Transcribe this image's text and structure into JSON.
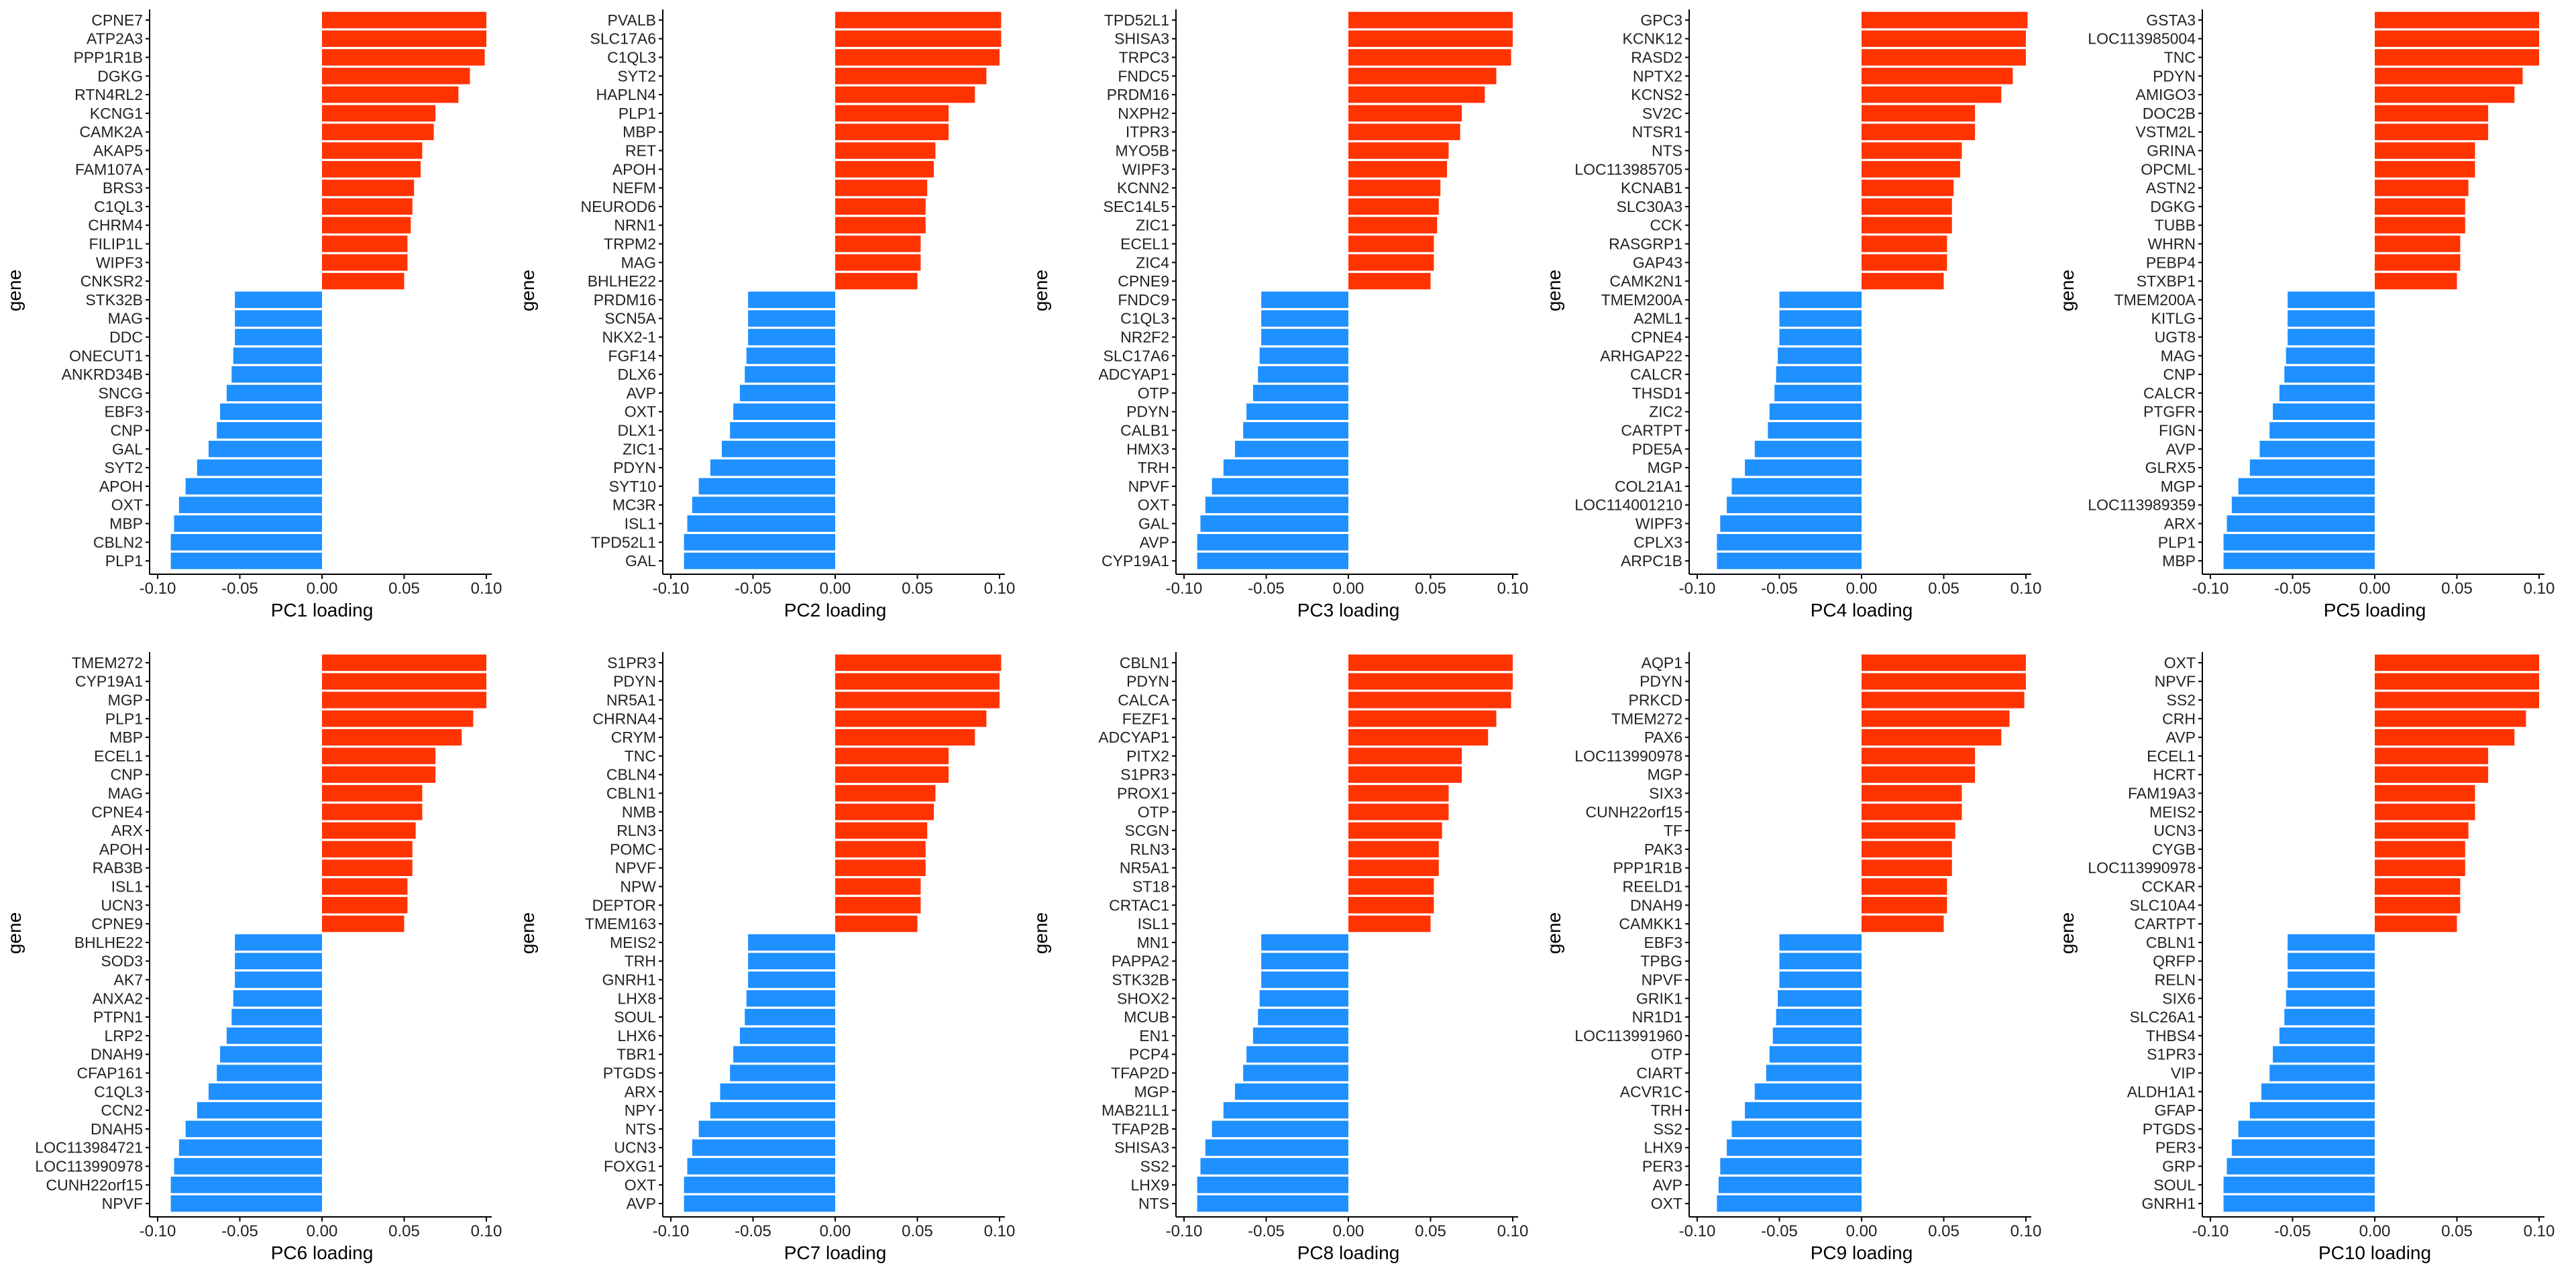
{
  "colors": {
    "positive": "#FF3300",
    "negative": "#1E90FF",
    "axis": "#000000",
    "background": "#FFFFFF"
  },
  "chart_data": [
    {
      "type": "bar",
      "orientation": "horizontal",
      "ylabel": "gene",
      "xlabel": "PC1 loading",
      "xlim": [
        -0.1,
        0.1
      ],
      "xticks": [
        -0.1,
        -0.05,
        0,
        0.05,
        0.1
      ],
      "xtick_labels": [
        "-0.10",
        "-0.05",
        "0.00",
        "0.05",
        "0.10"
      ],
      "categories": [
        "CPNE7",
        "ATP2A3",
        "PPP1R1B",
        "DGKG",
        "RTN4RL2",
        "KCNG1",
        "CAMK2A",
        "AKAP5",
        "FAM107A",
        "BRS3",
        "C1QL3",
        "CHRM4",
        "FILIP1L",
        "WIPF3",
        "CNKSR2",
        "STK32B",
        "MAG",
        "DDC",
        "ONECUT1",
        "ANKRD34B",
        "SNCG",
        "EBF3",
        "CNP",
        "GAL",
        "SYT2",
        "APOH",
        "OXT",
        "MBP",
        "CBLN2",
        "PLP1"
      ],
      "values": [
        0.1,
        0.1,
        0.099,
        0.09,
        0.083,
        0.069,
        0.068,
        0.061,
        0.06,
        0.056,
        0.055,
        0.054,
        0.052,
        0.052,
        0.05,
        -0.053,
        -0.053,
        -0.053,
        -0.054,
        -0.055,
        -0.058,
        -0.062,
        -0.064,
        -0.069,
        -0.076,
        -0.083,
        -0.087,
        -0.09,
        -0.092,
        -0.092
      ]
    },
    {
      "type": "bar",
      "orientation": "horizontal",
      "ylabel": "gene",
      "xlabel": "PC2 loading",
      "xlim": [
        -0.1,
        0.1
      ],
      "xticks": [
        -0.1,
        -0.05,
        0,
        0.05,
        0.1
      ],
      "xtick_labels": [
        "-0.10",
        "-0.05",
        "0.00",
        "0.05",
        "0.10"
      ],
      "categories": [
        "PVALB",
        "SLC17A6",
        "C1QL3",
        "SYT2",
        "HAPLN4",
        "PLP1",
        "MBP",
        "RET",
        "APOH",
        "NEFM",
        "NEUROD6",
        "NRN1",
        "TRPM2",
        "MAG",
        "BHLHE22",
        "PRDM16",
        "SCN5A",
        "NKX2-1",
        "FGF14",
        "DLX6",
        "AVP",
        "OXT",
        "DLX1",
        "ZIC1",
        "PDYN",
        "SYT10",
        "MC3R",
        "ISL1",
        "TPD52L1",
        "GAL"
      ],
      "values": [
        0.101,
        0.101,
        0.1,
        0.092,
        0.085,
        0.069,
        0.069,
        0.061,
        0.06,
        0.056,
        0.055,
        0.055,
        0.052,
        0.052,
        0.05,
        -0.053,
        -0.053,
        -0.053,
        -0.054,
        -0.055,
        -0.058,
        -0.062,
        -0.064,
        -0.069,
        -0.076,
        -0.083,
        -0.087,
        -0.09,
        -0.092,
        -0.092
      ]
    },
    {
      "type": "bar",
      "orientation": "horizontal",
      "ylabel": "gene",
      "xlabel": "PC3 loading",
      "xlim": [
        -0.1,
        0.1
      ],
      "xticks": [
        -0.1,
        -0.05,
        0,
        0.05,
        0.1
      ],
      "xtick_labels": [
        "-0.10",
        "-0.05",
        "0.00",
        "0.05",
        "0.10"
      ],
      "categories": [
        "TPD52L1",
        "SHISA3",
        "TRPC3",
        "FNDC5",
        "PRDM16",
        "NXPH2",
        "ITPR3",
        "MYO5B",
        "WIPF3",
        "KCNN2",
        "SEC14L5",
        "ZIC1",
        "ECEL1",
        "ZIC4",
        "CPNE9",
        "FNDC9",
        "C1QL3",
        "NR2F2",
        "SLC17A6",
        "ADCYAP1",
        "OTP",
        "PDYN",
        "CALB1",
        "HMX3",
        "TRH",
        "NPVF",
        "OXT",
        "GAL",
        "AVP",
        "CYP19A1"
      ],
      "values": [
        0.1,
        0.1,
        0.099,
        0.09,
        0.083,
        0.069,
        0.068,
        0.061,
        0.06,
        0.056,
        0.055,
        0.054,
        0.052,
        0.052,
        0.05,
        -0.053,
        -0.053,
        -0.053,
        -0.054,
        -0.055,
        -0.058,
        -0.062,
        -0.064,
        -0.069,
        -0.076,
        -0.083,
        -0.087,
        -0.09,
        -0.092,
        -0.092
      ]
    },
    {
      "type": "bar",
      "orientation": "horizontal",
      "ylabel": "gene",
      "xlabel": "PC4 loading",
      "xlim": [
        -0.1,
        0.1
      ],
      "xticks": [
        -0.1,
        -0.05,
        0,
        0.05,
        0.1
      ],
      "xtick_labels": [
        "-0.10",
        "-0.05",
        "0.00",
        "0.05",
        "0.10"
      ],
      "categories": [
        "GPC3",
        "KCNK12",
        "RASD2",
        "NPTX2",
        "KCNS2",
        "SV2C",
        "NTSR1",
        "NTS",
        "LOC113985705",
        "KCNAB1",
        "SLC30A3",
        "CCK",
        "RASGRP1",
        "GAP43",
        "CAMK2N1",
        "TMEM200A",
        "A2ML1",
        "CPNE4",
        "ARHGAP22",
        "CALCR",
        "THSD1",
        "ZIC2",
        "CARTPT",
        "PDE5A",
        "MGP",
        "COL21A1",
        "LOC114001210",
        "WIPF3",
        "CPLX3",
        "ARPC1B"
      ],
      "values": [
        0.101,
        0.1,
        0.1,
        0.092,
        0.085,
        0.069,
        0.069,
        0.061,
        0.06,
        0.056,
        0.055,
        0.055,
        0.052,
        0.052,
        0.05,
        -0.05,
        -0.05,
        -0.05,
        -0.051,
        -0.052,
        -0.053,
        -0.056,
        -0.057,
        -0.065,
        -0.071,
        -0.079,
        -0.082,
        -0.086,
        -0.088,
        -0.088
      ]
    },
    {
      "type": "bar",
      "orientation": "horizontal",
      "ylabel": "gene",
      "xlabel": "PC5 loading",
      "xlim": [
        -0.1,
        0.1
      ],
      "xticks": [
        -0.1,
        -0.05,
        0,
        0.05,
        0.1
      ],
      "xtick_labels": [
        "-0.10",
        "-0.05",
        "0.00",
        "0.05",
        "0.10"
      ],
      "categories": [
        "GSTA3",
        "LOC113985004",
        "TNC",
        "PDYN",
        "AMIGO3",
        "DOC2B",
        "VSTM2L",
        "GRINA",
        "OPCML",
        "ASTN2",
        "DGKG",
        "TUBB",
        "WHRN",
        "PEBP4",
        "STXBP1",
        "TMEM200A",
        "KITLG",
        "UGT8",
        "MAG",
        "CNP",
        "CALCR",
        "PTGFR",
        "FIGN",
        "AVP",
        "GLRX5",
        "MGP",
        "LOC113989359",
        "ARX",
        "PLP1",
        "MBP"
      ],
      "values": [
        0.1,
        0.1,
        0.1,
        0.09,
        0.085,
        0.069,
        0.069,
        0.061,
        0.061,
        0.057,
        0.055,
        0.055,
        0.052,
        0.052,
        0.05,
        -0.053,
        -0.053,
        -0.053,
        -0.054,
        -0.055,
        -0.058,
        -0.062,
        -0.064,
        -0.07,
        -0.076,
        -0.083,
        -0.087,
        -0.09,
        -0.092,
        -0.092
      ]
    },
    {
      "type": "bar",
      "orientation": "horizontal",
      "ylabel": "gene",
      "xlabel": "PC6 loading",
      "xlim": [
        -0.1,
        0.1
      ],
      "xticks": [
        -0.1,
        -0.05,
        0,
        0.05,
        0.1
      ],
      "xtick_labels": [
        "-0.10",
        "-0.05",
        "0.00",
        "0.05",
        "0.10"
      ],
      "categories": [
        "TMEM272",
        "CYP19A1",
        "MGP",
        "PLP1",
        "MBP",
        "ECEL1",
        "CNP",
        "MAG",
        "CPNE4",
        "ARX",
        "APOH",
        "RAB3B",
        "ISL1",
        "UCN3",
        "CPNE9",
        "BHLHE22",
        "SOD3",
        "AK7",
        "ANXA2",
        "PTPN1",
        "LRP2",
        "DNAH9",
        "CFAP161",
        "C1QL3",
        "CCN2",
        "DNAH5",
        "LOC113984721",
        "LOC113990978",
        "CUNH22orf15",
        "NPVF"
      ],
      "values": [
        0.1,
        0.1,
        0.1,
        0.092,
        0.085,
        0.069,
        0.069,
        0.061,
        0.061,
        0.057,
        0.055,
        0.055,
        0.052,
        0.052,
        0.05,
        -0.053,
        -0.053,
        -0.053,
        -0.054,
        -0.055,
        -0.058,
        -0.062,
        -0.064,
        -0.069,
        -0.076,
        -0.083,
        -0.087,
        -0.09,
        -0.092,
        -0.092
      ]
    },
    {
      "type": "bar",
      "orientation": "horizontal",
      "ylabel": "gene",
      "xlabel": "PC7 loading",
      "xlim": [
        -0.1,
        0.1
      ],
      "xticks": [
        -0.1,
        -0.05,
        0,
        0.05,
        0.1
      ],
      "xtick_labels": [
        "-0.10",
        "-0.05",
        "0.00",
        "0.05",
        "0.10"
      ],
      "categories": [
        "S1PR3",
        "PDYN",
        "NR5A1",
        "CHRNA4",
        "CRYM",
        "TNC",
        "CBLN4",
        "CBLN1",
        "NMB",
        "RLN3",
        "POMC",
        "NPVF",
        "NPW",
        "DEPTOR",
        "TMEM163",
        "MEIS2",
        "TRH",
        "GNRH1",
        "LHX8",
        "SOUL",
        "LHX6",
        "TBR1",
        "PTGDS",
        "ARX",
        "NPY",
        "NTS",
        "UCN3",
        "FOXG1",
        "OXT",
        "AVP"
      ],
      "values": [
        0.101,
        0.1,
        0.1,
        0.092,
        0.085,
        0.069,
        0.069,
        0.061,
        0.06,
        0.056,
        0.055,
        0.055,
        0.052,
        0.052,
        0.05,
        -0.053,
        -0.053,
        -0.053,
        -0.054,
        -0.055,
        -0.058,
        -0.062,
        -0.064,
        -0.07,
        -0.076,
        -0.083,
        -0.087,
        -0.09,
        -0.092,
        -0.092
      ]
    },
    {
      "type": "bar",
      "orientation": "horizontal",
      "ylabel": "gene",
      "xlabel": "PC8 loading",
      "xlim": [
        -0.1,
        0.1
      ],
      "xticks": [
        -0.1,
        -0.05,
        0,
        0.05,
        0.1
      ],
      "xtick_labels": [
        "-0.10",
        "-0.05",
        "0.00",
        "0.05",
        "0.10"
      ],
      "categories": [
        "CBLN1",
        "PDYN",
        "CALCA",
        "FEZF1",
        "ADCYAP1",
        "PITX2",
        "S1PR3",
        "PROX1",
        "OTP",
        "SCGN",
        "RLN3",
        "NR5A1",
        "ST18",
        "CRTAC1",
        "ISL1",
        "MN1",
        "PAPPA2",
        "STK32B",
        "SHOX2",
        "MCUB",
        "EN1",
        "PCP4",
        "TFAP2D",
        "MGP",
        "MAB21L1",
        "TFAP2B",
        "SHISA3",
        "SS2",
        "LHX9",
        "NTS"
      ],
      "values": [
        0.1,
        0.1,
        0.099,
        0.09,
        0.085,
        0.069,
        0.069,
        0.061,
        0.061,
        0.057,
        0.055,
        0.055,
        0.052,
        0.052,
        0.05,
        -0.053,
        -0.053,
        -0.053,
        -0.054,
        -0.055,
        -0.058,
        -0.062,
        -0.064,
        -0.069,
        -0.076,
        -0.083,
        -0.087,
        -0.09,
        -0.092,
        -0.092
      ]
    },
    {
      "type": "bar",
      "orientation": "horizontal",
      "ylabel": "gene",
      "xlabel": "PC9 loading",
      "xlim": [
        -0.1,
        0.1
      ],
      "xticks": [
        -0.1,
        -0.05,
        0,
        0.05,
        0.1
      ],
      "xtick_labels": [
        "-0.10",
        "-0.05",
        "0.00",
        "0.05",
        "0.10"
      ],
      "categories": [
        "AQP1",
        "PDYN",
        "PRKCD",
        "TMEM272",
        "PAX6",
        "LOC113990978",
        "MGP",
        "SIX3",
        "CUNH22orf15",
        "TF",
        "PAK3",
        "PPP1R1B",
        "REELD1",
        "DNAH9",
        "CAMKK1",
        "EBF3",
        "TPBG",
        "NPVF",
        "GRIK1",
        "NR1D1",
        "LOC113991960",
        "OTP",
        "CIART",
        "ACVR1C",
        "TRH",
        "SS2",
        "LHX9",
        "PER3",
        "AVP",
        "OXT"
      ],
      "values": [
        0.1,
        0.1,
        0.099,
        0.09,
        0.085,
        0.069,
        0.069,
        0.061,
        0.061,
        0.057,
        0.055,
        0.055,
        0.052,
        0.052,
        0.05,
        -0.05,
        -0.05,
        -0.05,
        -0.051,
        -0.052,
        -0.054,
        -0.056,
        -0.058,
        -0.065,
        -0.071,
        -0.079,
        -0.082,
        -0.086,
        -0.087,
        -0.088
      ]
    },
    {
      "type": "bar",
      "orientation": "horizontal",
      "ylabel": "gene",
      "xlabel": "PC10 loading",
      "xlim": [
        -0.1,
        0.1
      ],
      "xticks": [
        -0.1,
        -0.05,
        0,
        0.05,
        0.1
      ],
      "xtick_labels": [
        "-0.10",
        "-0.05",
        "0.00",
        "0.05",
        "0.10"
      ],
      "categories": [
        "OXT",
        "NPVF",
        "SS2",
        "CRH",
        "AVP",
        "ECEL1",
        "HCRT",
        "FAM19A3",
        "MEIS2",
        "UCN3",
        "CYGB",
        "LOC113990978",
        "CCKAR",
        "SLC10A4",
        "CARTPT",
        "CBLN1",
        "QRFP",
        "RELN",
        "SIX6",
        "SLC26A1",
        "THBS4",
        "S1PR3",
        "VIP",
        "ALDH1A1",
        "GFAP",
        "PTGDS",
        "PER3",
        "GRP",
        "SOUL",
        "GNRH1"
      ],
      "values": [
        0.1,
        0.1,
        0.1,
        0.092,
        0.085,
        0.069,
        0.069,
        0.061,
        0.061,
        0.057,
        0.055,
        0.055,
        0.052,
        0.052,
        0.05,
        -0.053,
        -0.053,
        -0.053,
        -0.054,
        -0.055,
        -0.058,
        -0.062,
        -0.064,
        -0.069,
        -0.076,
        -0.083,
        -0.087,
        -0.09,
        -0.092,
        -0.092
      ]
    }
  ]
}
